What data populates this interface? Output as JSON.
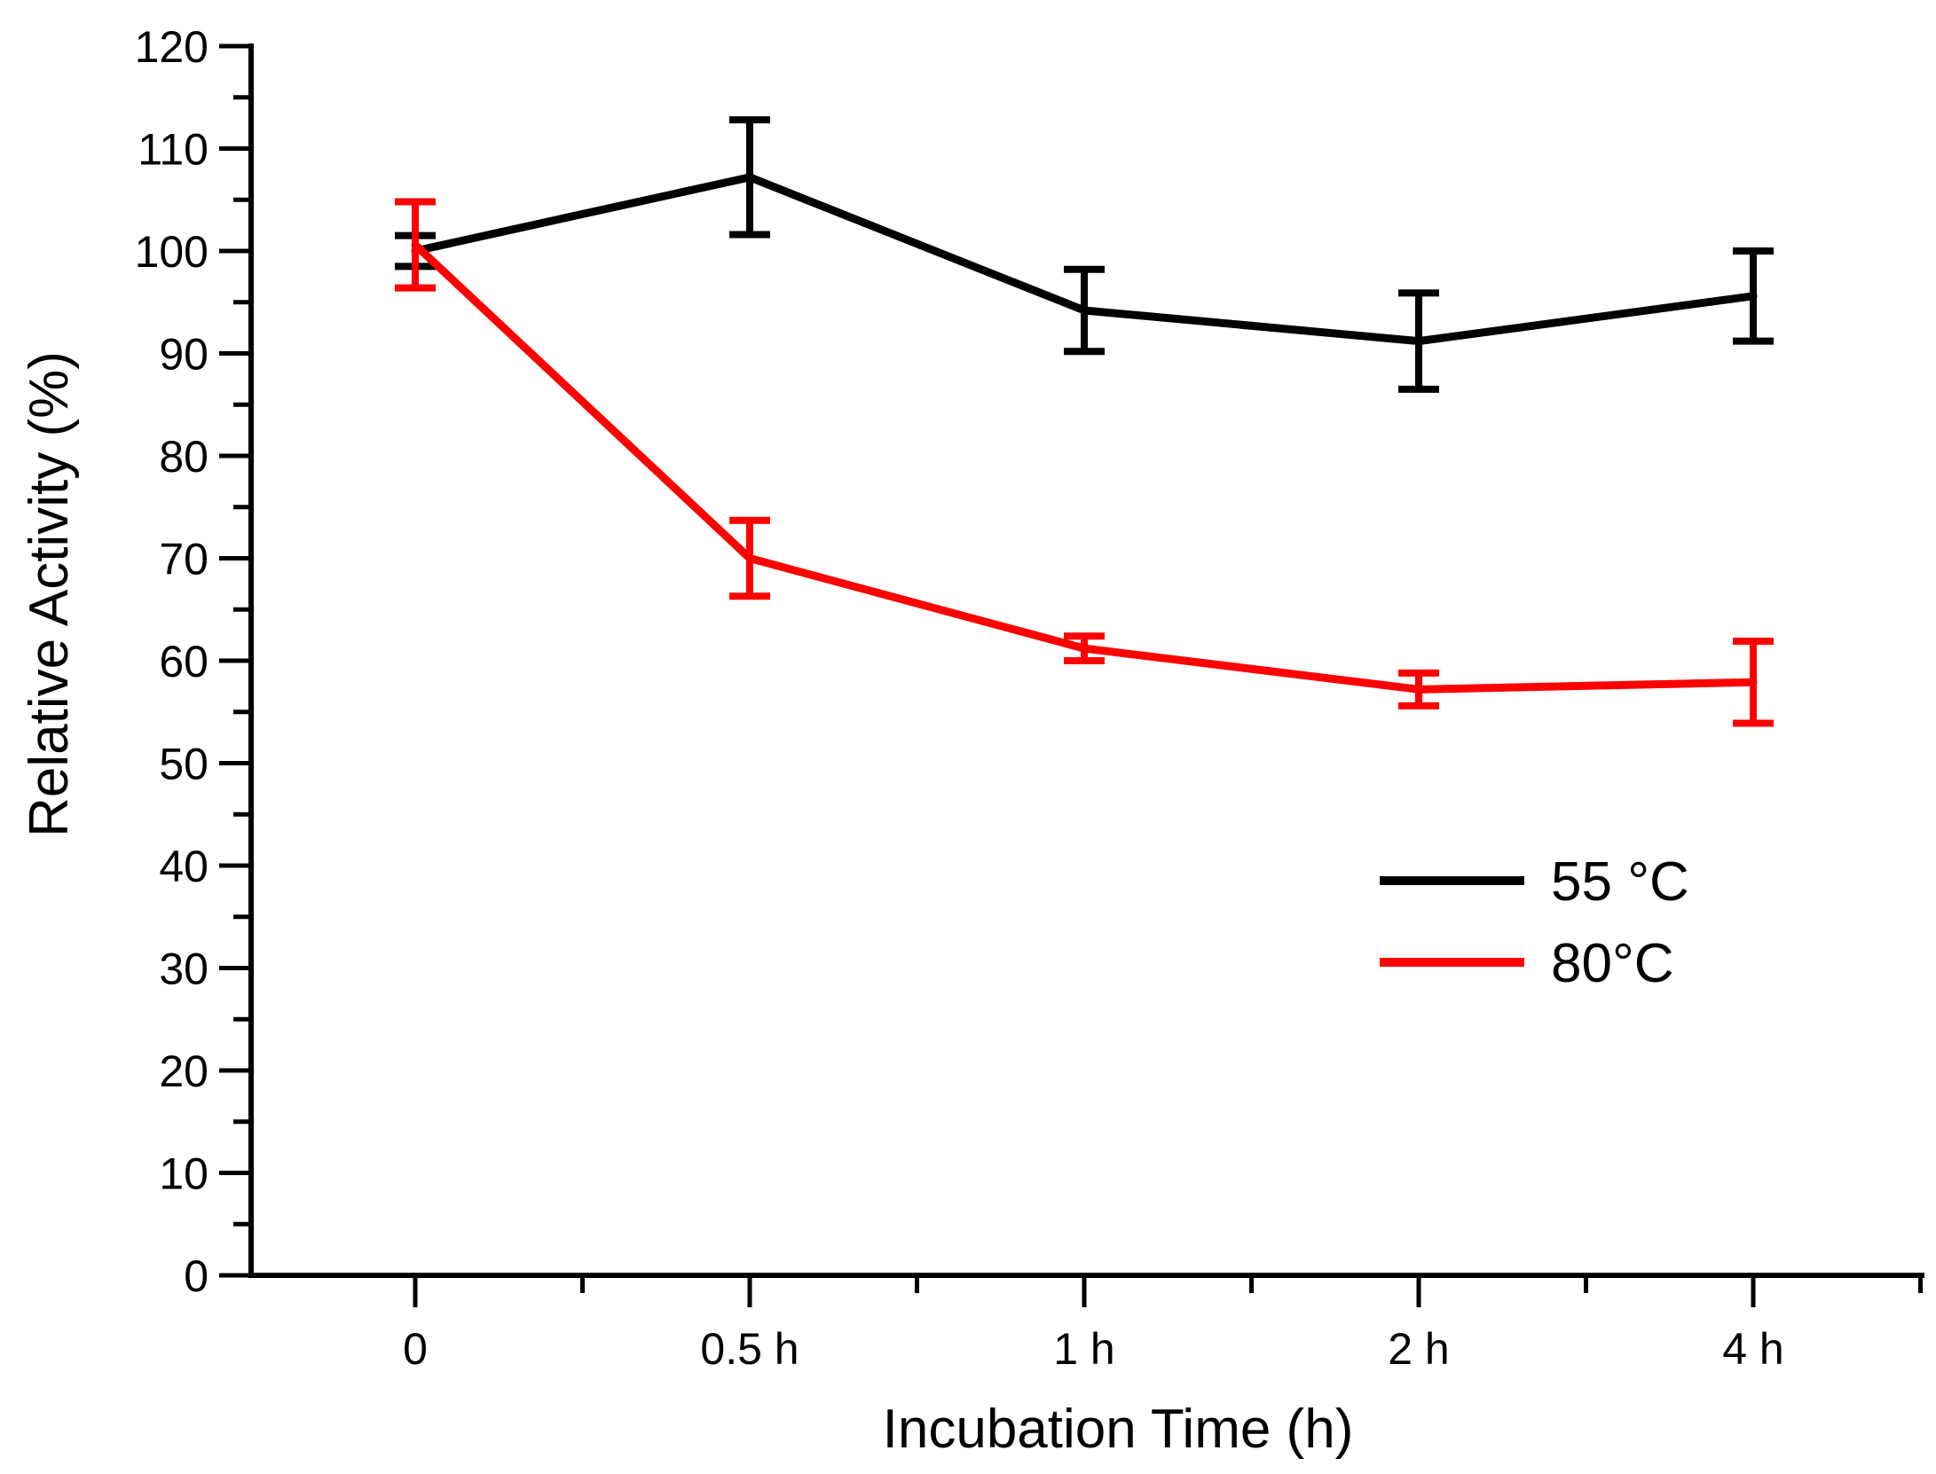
{
  "chart_data": {
    "type": "line",
    "title": "",
    "xlabel": "Incubation Time (h)",
    "ylabel": "Relative Activity (%)",
    "categories": [
      "0",
      "0.5 h",
      "1 h",
      "2 h",
      "4 h"
    ],
    "ylim": [
      0,
      120
    ],
    "yticks": [
      0,
      10,
      20,
      30,
      40,
      50,
      60,
      70,
      80,
      90,
      100,
      110,
      120
    ],
    "grid": false,
    "legend_position": "right-middle",
    "series": [
      {
        "name": "55 °C",
        "color": "#000000",
        "values": [
          100,
          107.2,
          94.2,
          91.2,
          95.6
        ],
        "errors": [
          1.5,
          5.6,
          4.0,
          4.7,
          4.4
        ]
      },
      {
        "name": "80°C",
        "color": "#ff0000",
        "values": [
          100.6,
          70.0,
          61.2,
          57.2,
          57.9
        ],
        "errors": [
          4.2,
          3.7,
          1.2,
          1.6,
          4.0
        ]
      }
    ]
  }
}
